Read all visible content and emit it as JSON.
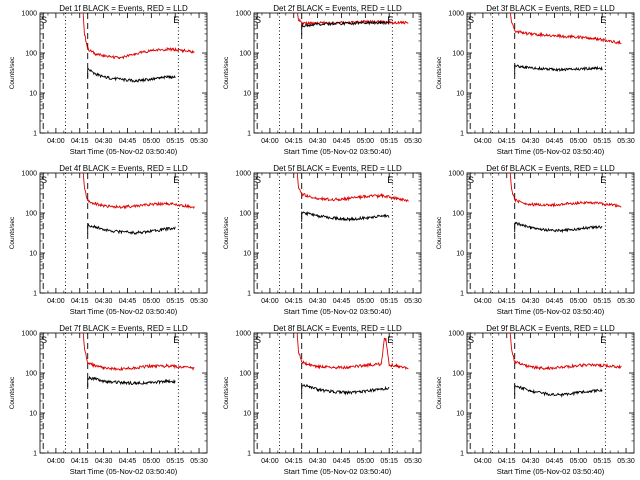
{
  "figure": {
    "layout": "3x3",
    "colors": {
      "events": "#000000",
      "lld": "#dd0000",
      "axes": "#000000",
      "background": "#ffffff"
    }
  },
  "chart_data": [
    {
      "type": "line",
      "title": "Det 1f BLACK = Events, RED = LLD",
      "xlabel": "Start Time (05-Nov-02 03:50:40)",
      "ylabel": "Counts/sec",
      "xtick_labels": [
        "04:00",
        "04:15",
        "04:30",
        "04:45",
        "05:00",
        "05:15",
        "05:30"
      ],
      "ytick_labels": [
        "1",
        "10",
        "100",
        "1000"
      ],
      "ylim": [
        1,
        1000
      ],
      "yscale": "log",
      "markers": {
        "start_label": "S",
        "end_label": "E"
      },
      "series": [
        {
          "name": "LLD",
          "color": "#dd0000",
          "x": [
            "04:18",
            "04:20",
            "04:25",
            "04:30",
            "04:40",
            "04:50",
            "05:00",
            "05:10",
            "05:20",
            "05:27"
          ],
          "y": [
            300,
            125,
            95,
            85,
            75,
            95,
            115,
            125,
            115,
            105
          ]
        },
        {
          "name": "Events",
          "color": "#000000",
          "x": [
            "04:20",
            "04:25",
            "04:30",
            "04:40",
            "04:50",
            "05:00",
            "05:10",
            "05:15"
          ],
          "y": [
            40,
            30,
            25,
            22,
            20,
            22,
            25,
            25
          ]
        }
      ]
    },
    {
      "type": "line",
      "title": "Det 2f BLACK = Events, RED = LLD",
      "xlabel": "Start Time (05-Nov-02 03:50:40)",
      "ylabel": "Counts/sec",
      "xtick_labels": [
        "04:00",
        "04:15",
        "04:30",
        "04:45",
        "05:00",
        "05:15",
        "05:30"
      ],
      "ytick_labels": [
        "1",
        "10",
        "100",
        "1000"
      ],
      "ylim": [
        1,
        1000
      ],
      "yscale": "log",
      "markers": {
        "start_label": "S",
        "end_label": "E"
      },
      "series": [
        {
          "name": "LLD",
          "color": "#dd0000",
          "x": [
            "04:18",
            "04:20",
            "04:25",
            "04:30",
            "04:40",
            "04:50",
            "05:00",
            "05:10",
            "05:20",
            "05:27"
          ],
          "y": [
            700,
            560,
            560,
            560,
            560,
            580,
            600,
            600,
            580,
            560
          ]
        },
        {
          "name": "Events",
          "color": "#000000",
          "x": [
            "04:20",
            "04:25",
            "04:30",
            "04:40",
            "04:50",
            "05:00",
            "05:10",
            "05:15"
          ],
          "y": [
            480,
            500,
            520,
            540,
            550,
            570,
            580,
            560
          ]
        }
      ]
    },
    {
      "type": "line",
      "title": "Det 3f BLACK = Events, RED = LLD",
      "xlabel": "Start Time (05-Nov-02 03:50:40)",
      "ylabel": "Counts/sec",
      "xtick_labels": [
        "04:00",
        "04:15",
        "04:30",
        "04:45",
        "05:00",
        "05:15",
        "05:30"
      ],
      "ytick_labels": [
        "1",
        "10",
        "100",
        "1000"
      ],
      "ylim": [
        1,
        1000
      ],
      "yscale": "log",
      "markers": {
        "start_label": "S",
        "end_label": "E"
      },
      "series": [
        {
          "name": "LLD",
          "color": "#dd0000",
          "x": [
            "04:18",
            "04:20",
            "04:25",
            "04:30",
            "04:40",
            "04:50",
            "05:00",
            "05:10",
            "05:20",
            "05:27"
          ],
          "y": [
            600,
            360,
            320,
            300,
            280,
            260,
            250,
            230,
            200,
            180
          ]
        },
        {
          "name": "Events",
          "color": "#000000",
          "x": [
            "04:20",
            "04:25",
            "04:30",
            "04:40",
            "04:50",
            "05:00",
            "05:10",
            "05:15"
          ],
          "y": [
            50,
            45,
            42,
            40,
            38,
            40,
            42,
            40
          ]
        }
      ]
    },
    {
      "type": "line",
      "title": "Det 4f BLACK = Events, RED = LLD",
      "xlabel": "Start Time (05-Nov-02 03:50:40)",
      "ylabel": "Counts/sec",
      "xtick_labels": [
        "04:00",
        "04:15",
        "04:30",
        "04:45",
        "05:00",
        "05:15",
        "05:30"
      ],
      "ytick_labels": [
        "1",
        "10",
        "100",
        "1000"
      ],
      "ylim": [
        1,
        1000
      ],
      "yscale": "log",
      "markers": {
        "start_label": "S",
        "end_label": "E"
      },
      "series": [
        {
          "name": "LLD",
          "color": "#dd0000",
          "x": [
            "04:18",
            "04:20",
            "04:25",
            "04:30",
            "04:40",
            "04:50",
            "05:00",
            "05:10",
            "05:20",
            "05:27"
          ],
          "y": [
            400,
            200,
            170,
            150,
            140,
            150,
            165,
            170,
            155,
            140
          ]
        },
        {
          "name": "Events",
          "color": "#000000",
          "x": [
            "04:20",
            "04:25",
            "04:30",
            "04:40",
            "04:50",
            "05:00",
            "05:10",
            "05:15"
          ],
          "y": [
            50,
            45,
            38,
            34,
            32,
            35,
            40,
            42
          ]
        }
      ]
    },
    {
      "type": "line",
      "title": "Det 5f BLACK = Events, RED = LLD",
      "xlabel": "Start Time (05-Nov-02 03:50:40)",
      "ylabel": "Counts/sec",
      "xtick_labels": [
        "04:00",
        "04:15",
        "04:30",
        "04:45",
        "05:00",
        "05:15",
        "05:30"
      ],
      "ytick_labels": [
        "1",
        "10",
        "100",
        "1000"
      ],
      "ylim": [
        1,
        1000
      ],
      "yscale": "log",
      "markers": {
        "start_label": "S",
        "end_label": "E"
      },
      "series": [
        {
          "name": "LLD",
          "color": "#dd0000",
          "x": [
            "04:18",
            "04:20",
            "04:25",
            "04:30",
            "04:40",
            "04:50",
            "05:00",
            "05:10",
            "05:20",
            "05:27"
          ],
          "y": [
            420,
            300,
            260,
            230,
            215,
            230,
            260,
            270,
            230,
            200
          ]
        },
        {
          "name": "Events",
          "color": "#000000",
          "x": [
            "04:20",
            "04:25",
            "04:30",
            "04:40",
            "04:50",
            "05:00",
            "05:10",
            "05:15"
          ],
          "y": [
            100,
            95,
            85,
            75,
            70,
            75,
            85,
            80
          ]
        }
      ]
    },
    {
      "type": "line",
      "title": "Det 6f BLACK = Events, RED = LLD",
      "xlabel": "Start Time (05-Nov-02 03:50:40)",
      "ylabel": "Counts/sec",
      "xtick_labels": [
        "04:00",
        "04:15",
        "04:30",
        "04:45",
        "05:00",
        "05:15",
        "05:30"
      ],
      "ytick_labels": [
        "1",
        "10",
        "100",
        "1000"
      ],
      "ylim": [
        1,
        1000
      ],
      "yscale": "log",
      "markers": {
        "start_label": "S",
        "end_label": "E"
      },
      "series": [
        {
          "name": "LLD",
          "color": "#dd0000",
          "x": [
            "04:18",
            "04:20",
            "04:25",
            "04:30",
            "04:40",
            "04:50",
            "05:00",
            "05:10",
            "05:20",
            "05:27"
          ],
          "y": [
            400,
            210,
            180,
            165,
            155,
            165,
            180,
            180,
            160,
            150
          ]
        },
        {
          "name": "Events",
          "color": "#000000",
          "x": [
            "04:20",
            "04:25",
            "04:30",
            "04:40",
            "04:50",
            "05:00",
            "05:10",
            "05:15"
          ],
          "y": [
            55,
            50,
            42,
            38,
            36,
            40,
            45,
            45
          ]
        }
      ]
    },
    {
      "type": "line",
      "title": "Det 7f BLACK = Events, RED = LLD",
      "xlabel": "Start Time (05-Nov-02 03:50:40)",
      "ylabel": "Counts/sec",
      "xtick_labels": [
        "04:00",
        "04:15",
        "04:30",
        "04:45",
        "05:00",
        "05:15",
        "05:30"
      ],
      "ytick_labels": [
        "1",
        "10",
        "100",
        "1000"
      ],
      "ylim": [
        1,
        1000
      ],
      "yscale": "log",
      "markers": {
        "start_label": "S",
        "end_label": "E"
      },
      "series": [
        {
          "name": "LLD",
          "color": "#dd0000",
          "x": [
            "04:18",
            "04:20",
            "04:25",
            "04:30",
            "04:40",
            "04:50",
            "05:00",
            "05:10",
            "05:20",
            "05:27"
          ],
          "y": [
            400,
            180,
            150,
            135,
            125,
            135,
            150,
            150,
            140,
            130
          ]
        },
        {
          "name": "Events",
          "color": "#000000",
          "x": [
            "04:20",
            "04:25",
            "04:30",
            "04:40",
            "04:50",
            "05:00",
            "05:10",
            "05:15"
          ],
          "y": [
            75,
            70,
            62,
            58,
            55,
            58,
            62,
            60
          ]
        }
      ]
    },
    {
      "type": "line",
      "title": "Det 8f BLACK = Events, RED = LLD",
      "xlabel": "Start Time (05-Nov-02 03:50:40)",
      "ylabel": "Counts/sec",
      "xtick_labels": [
        "04:00",
        "04:15",
        "04:30",
        "04:45",
        "05:00",
        "05:15",
        "05:30"
      ],
      "ytick_labels": [
        "1",
        "10",
        "100",
        "1000"
      ],
      "ylim": [
        1,
        1000
      ],
      "yscale": "log",
      "markers": {
        "start_label": "S",
        "end_label": "E"
      },
      "series": [
        {
          "name": "LLD",
          "color": "#dd0000",
          "x": [
            "04:18",
            "04:20",
            "04:25",
            "04:30",
            "04:40",
            "04:50",
            "05:00",
            "05:10",
            "05:12",
            "05:13",
            "05:15",
            "05:20",
            "05:27"
          ],
          "y": [
            350,
            190,
            160,
            145,
            135,
            140,
            155,
            165,
            700,
            700,
            160,
            150,
            135
          ]
        },
        {
          "name": "Events",
          "color": "#000000",
          "x": [
            "04:20",
            "04:25",
            "04:30",
            "04:40",
            "04:50",
            "05:00",
            "05:10",
            "05:15"
          ],
          "y": [
            50,
            45,
            38,
            34,
            32,
            35,
            40,
            42
          ]
        }
      ]
    },
    {
      "type": "line",
      "title": "Det 9f BLACK = Events, RED = LLD",
      "xlabel": "Start Time (05-Nov-02 03:50:40)",
      "ylabel": "Counts/sec",
      "xtick_labels": [
        "04:00",
        "04:15",
        "04:30",
        "04:45",
        "05:00",
        "05:15",
        "05:30"
      ],
      "ytick_labels": [
        "1",
        "10",
        "100",
        "1000"
      ],
      "ylim": [
        1,
        1000
      ],
      "yscale": "log",
      "markers": {
        "start_label": "S",
        "end_label": "E"
      },
      "series": [
        {
          "name": "LLD",
          "color": "#dd0000",
          "x": [
            "04:18",
            "04:20",
            "04:25",
            "04:30",
            "04:40",
            "04:50",
            "05:00",
            "05:10",
            "05:20",
            "05:27"
          ],
          "y": [
            400,
            190,
            160,
            140,
            130,
            140,
            155,
            160,
            150,
            140
          ]
        },
        {
          "name": "Events",
          "color": "#000000",
          "x": [
            "04:20",
            "04:25",
            "04:30",
            "04:40",
            "04:50",
            "05:00",
            "05:10",
            "05:15"
          ],
          "y": [
            48,
            42,
            35,
            30,
            28,
            32,
            36,
            38
          ]
        }
      ]
    }
  ]
}
